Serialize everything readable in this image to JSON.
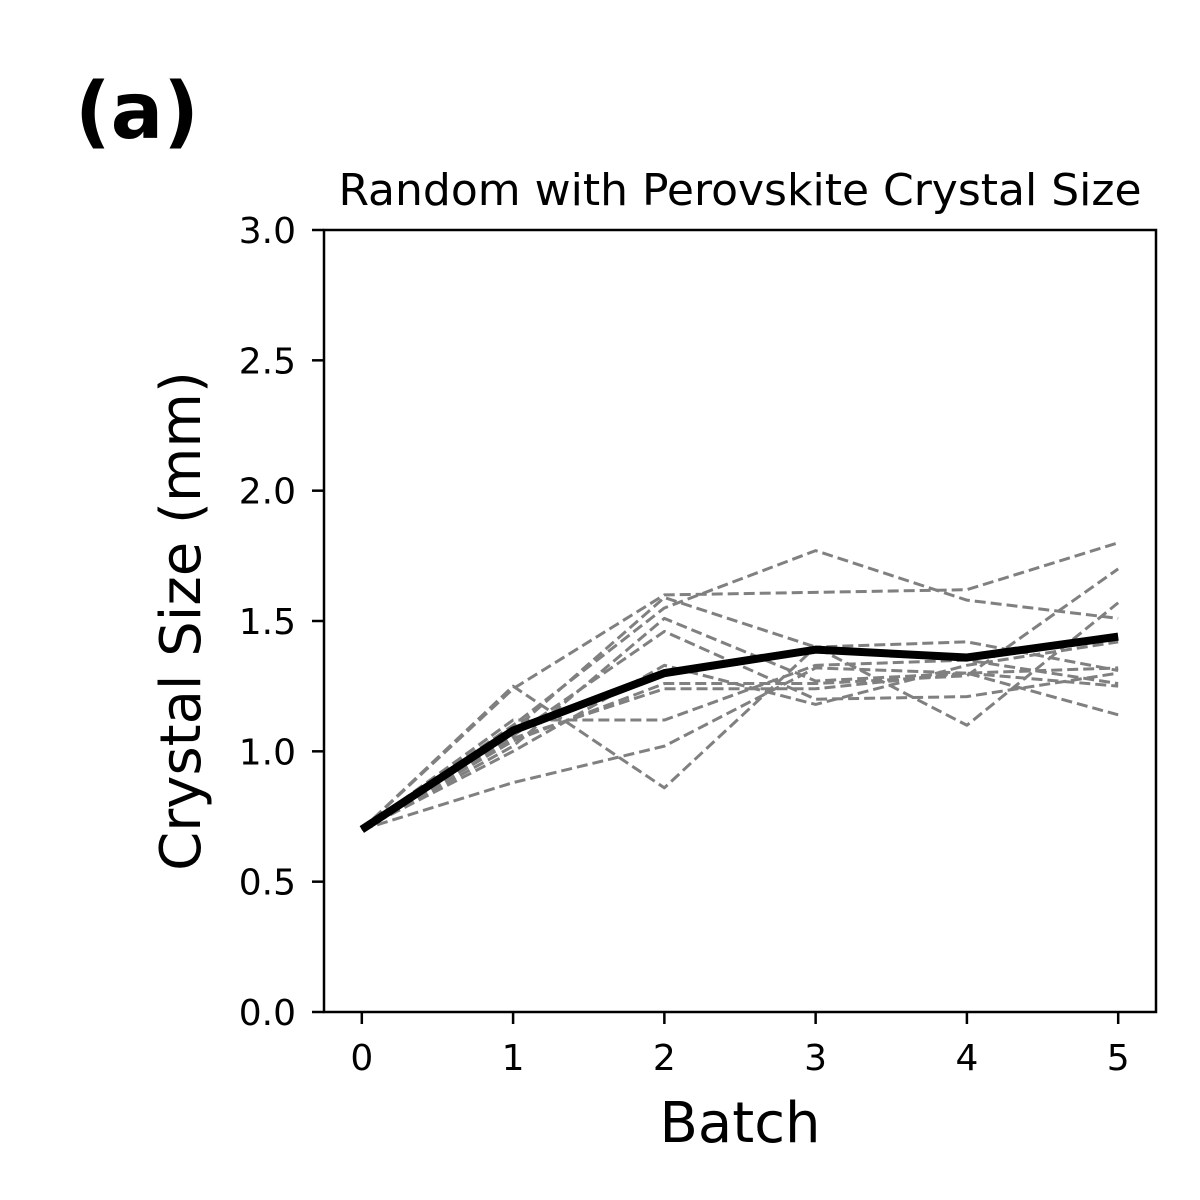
{
  "panel_label": "(a)",
  "chart_data": {
    "type": "line",
    "title": "Random with Perovskite Crystal Size",
    "xlabel": "Batch",
    "ylabel": "Crystal Size (mm)",
    "xlim": [
      -0.25,
      5.25
    ],
    "ylim": [
      0.0,
      3.0
    ],
    "xticks": [
      "0",
      "1",
      "2",
      "3",
      "4",
      "5"
    ],
    "yticks": [
      "0.0",
      "0.5",
      "1.0",
      "1.5",
      "2.0",
      "2.5",
      "3.0"
    ],
    "x": [
      0,
      1,
      2,
      3,
      4,
      5
    ],
    "grid": false,
    "legend": "none",
    "series": [
      {
        "style": "dashed",
        "color": "#808080",
        "values": [
          0.7,
          1.25,
          0.86,
          1.4,
          1.42,
          1.31
        ]
      },
      {
        "style": "dashed",
        "color": "#808080",
        "values": [
          0.7,
          1.24,
          1.6,
          1.61,
          1.62,
          1.8
        ]
      },
      {
        "style": "dashed",
        "color": "#808080",
        "values": [
          0.7,
          1.08,
          1.59,
          1.4,
          1.1,
          1.57
        ]
      },
      {
        "style": "dashed",
        "color": "#808080",
        "values": [
          0.7,
          1.1,
          1.55,
          1.77,
          1.58,
          1.51
        ]
      },
      {
        "style": "dashed",
        "color": "#808080",
        "values": [
          0.7,
          1.02,
          1.51,
          1.27,
          1.3,
          1.14
        ]
      },
      {
        "style": "dashed",
        "color": "#808080",
        "values": [
          0.7,
          1.06,
          1.46,
          1.2,
          1.21,
          1.3
        ]
      },
      {
        "style": "dashed",
        "color": "#808080",
        "values": [
          0.7,
          0.88,
          1.02,
          1.32,
          1.3,
          1.32
        ]
      },
      {
        "style": "dashed",
        "color": "#808080",
        "values": [
          0.7,
          1.12,
          1.12,
          1.33,
          1.35,
          1.26
        ]
      },
      {
        "style": "dashed",
        "color": "#808080",
        "values": [
          0.7,
          1.0,
          1.33,
          1.18,
          1.33,
          1.42
        ]
      },
      {
        "style": "dashed",
        "color": "#808080",
        "values": [
          0.7,
          1.04,
          1.26,
          1.26,
          1.29,
          1.7
        ]
      },
      {
        "style": "dashed",
        "color": "#808080",
        "values": [
          0.7,
          1.05,
          1.24,
          1.24,
          1.3,
          1.25
        ]
      },
      {
        "style": "solid",
        "color": "#000000",
        "values": [
          0.7,
          1.08,
          1.3,
          1.39,
          1.36,
          1.44
        ]
      }
    ]
  }
}
